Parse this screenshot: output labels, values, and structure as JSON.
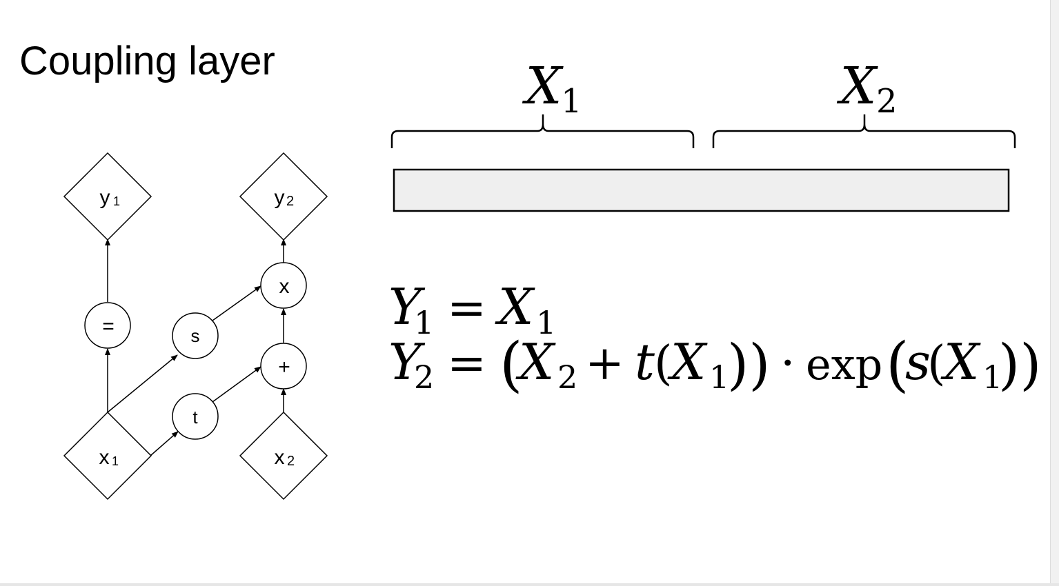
{
  "title": "Coupling layer",
  "graph": {
    "nodes": {
      "y1": {
        "letter": "y",
        "sub": "1"
      },
      "y2": {
        "letter": "y",
        "sub": "2"
      },
      "eq": {
        "label": "="
      },
      "s": {
        "label": "s"
      },
      "mult": {
        "label": "x"
      },
      "plus": {
        "label": "+"
      },
      "t": {
        "label": "t"
      },
      "x1": {
        "letter": "x",
        "sub": "1"
      },
      "x2": {
        "letter": "x",
        "sub": "2"
      }
    }
  },
  "split": {
    "x1": {
      "letter": "X",
      "sub": "1"
    },
    "x2": {
      "letter": "X",
      "sub": "2"
    },
    "bar_color": "#efefef"
  },
  "equations": {
    "eq1": {
      "lhs": "Y",
      "lhs_sub": "1",
      "eq": "=",
      "rhs": "X",
      "rhs_sub": "1"
    },
    "eq2": {
      "lhs": "Y",
      "lhs_sub": "2",
      "eq": "=",
      "open": "(",
      "x": "X",
      "x_sub": "2",
      "plus": "+",
      "t": "t",
      "t_open": "(",
      "t_x": "X",
      "t_x_sub": "1",
      "t_close": "))",
      "dot": "·",
      "exp": "exp",
      "s_open": "(",
      "s": "s",
      "s_paren": "(",
      "s_x": "X",
      "s_x_sub": "1",
      "s_close": "))"
    }
  }
}
